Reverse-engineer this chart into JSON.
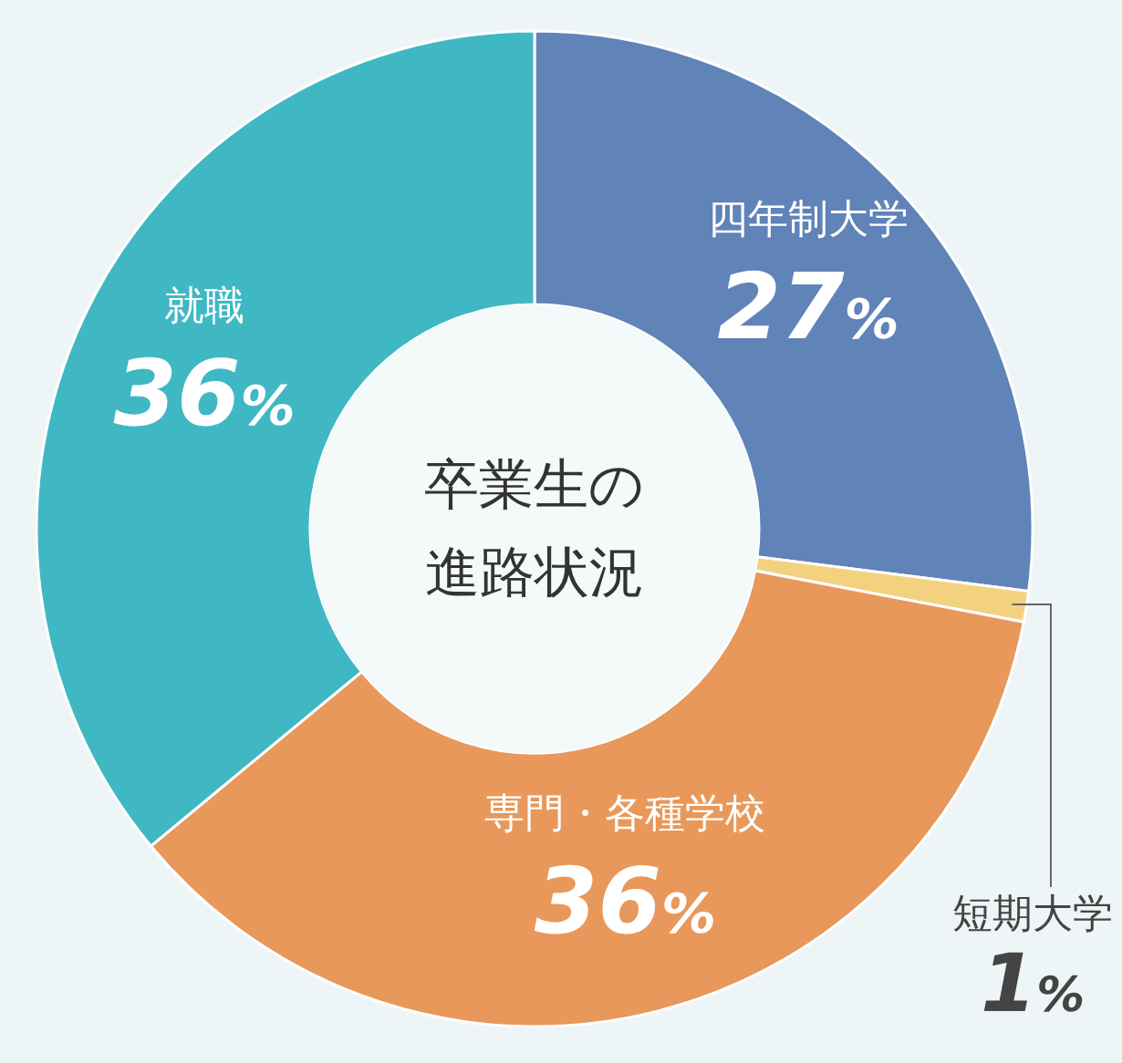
{
  "chart_data": {
    "type": "donut",
    "title": "卒業生の進路状況",
    "categories": [
      "四年制大学",
      "短期大学",
      "専門・各種学校",
      "就職"
    ],
    "values": [
      27,
      1,
      36,
      36
    ],
    "colors": [
      "#6083b8",
      "#f3d27f",
      "#e8985a",
      "#3fb8c4"
    ],
    "value_labels": [
      "27%",
      "1%",
      "36%",
      "36%"
    ]
  }
}
